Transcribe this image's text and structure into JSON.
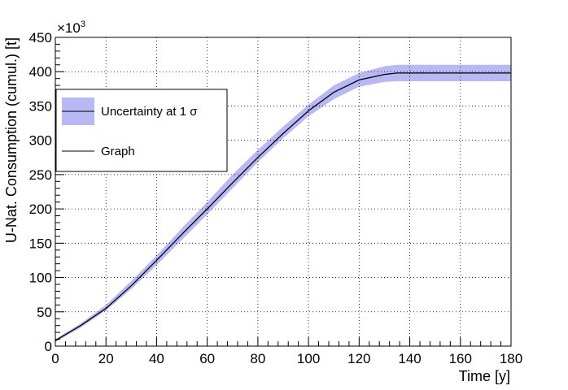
{
  "chart_data": {
    "type": "line",
    "xlabel": "Time [y]",
    "ylabel": "U-Nat. Consumption (cumul.) [t]",
    "y_multiplier": "×10",
    "y_multiplier_exp": "3",
    "xlim": [
      0,
      180
    ],
    "ylim": [
      0,
      450
    ],
    "x_ticks": [
      "0",
      "20",
      "40",
      "60",
      "80",
      "100",
      "120",
      "140",
      "160",
      "180"
    ],
    "y_ticks": [
      "0",
      "50",
      "100",
      "150",
      "200",
      "250",
      "300",
      "350",
      "400",
      "450"
    ],
    "grid": true,
    "legend_position": "top-left",
    "legend": [
      {
        "label": "Uncertainty at 1 σ",
        "style": "band"
      },
      {
        "label": "Graph",
        "style": "line"
      }
    ],
    "series": [
      {
        "name": "Graph",
        "color": "#000000",
        "x": [
          0,
          10,
          20,
          30,
          40,
          50,
          60,
          70,
          80,
          90,
          100,
          110,
          120,
          130,
          135,
          140,
          150,
          160,
          170,
          180
        ],
        "y": [
          8,
          30,
          55,
          88,
          125,
          163,
          200,
          238,
          275,
          310,
          343,
          370,
          388,
          396,
          398,
          398,
          398,
          398,
          398,
          398
        ]
      },
      {
        "name": "Uncertainty at 1 σ",
        "color": "#b8b8f5",
        "x": [
          0,
          10,
          20,
          30,
          40,
          50,
          60,
          70,
          80,
          90,
          100,
          110,
          120,
          130,
          135,
          140,
          150,
          160,
          170,
          180
        ],
        "lower": [
          6,
          27,
          52,
          83,
          118,
          155,
          192,
          230,
          268,
          303,
          335,
          360,
          378,
          385,
          386,
          386,
          386,
          386,
          386,
          386
        ],
        "upper": [
          10,
          33,
          60,
          95,
          132,
          172,
          210,
          250,
          286,
          320,
          352,
          380,
          398,
          408,
          410,
          410,
          410,
          410,
          410,
          410
        ]
      }
    ]
  }
}
